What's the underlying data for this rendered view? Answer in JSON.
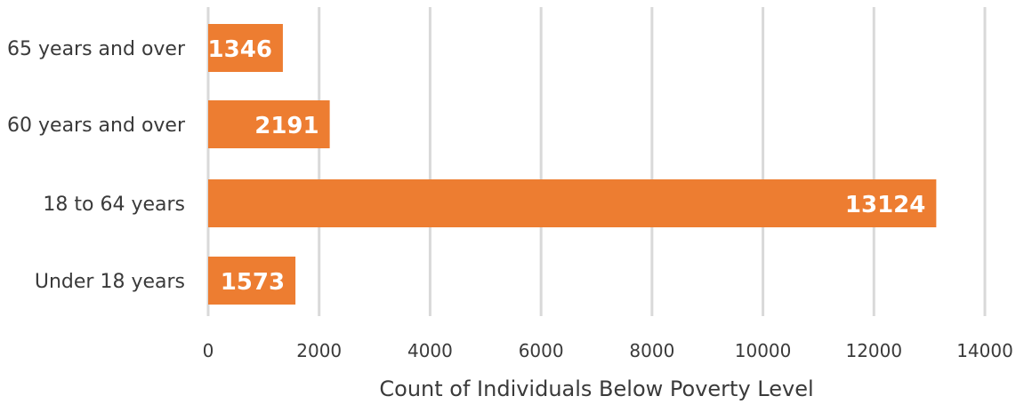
{
  "chart_data": {
    "type": "bar",
    "orientation": "horizontal",
    "categories": [
      "65 years and over",
      "60 years and over",
      "18 to 64 years",
      "Under 18 years"
    ],
    "values": [
      1346,
      2191,
      13124,
      1573
    ],
    "data_labels": [
      "1346",
      "2191",
      "13124",
      "1573"
    ],
    "xlabel": "Count of Individuals Below Poverty Level",
    "ylabel": "",
    "xlim": [
      0,
      14000
    ],
    "x_ticks": [
      0,
      2000,
      4000,
      6000,
      8000,
      10000,
      12000,
      14000
    ],
    "x_tick_labels": [
      "0",
      "2000",
      "4000",
      "6000",
      "8000",
      "10000",
      "12000",
      "14000"
    ],
    "grid": "vertical",
    "legend": "none",
    "bar_color": "#ED7D31",
    "data_label_color": "#FFFFFF"
  }
}
